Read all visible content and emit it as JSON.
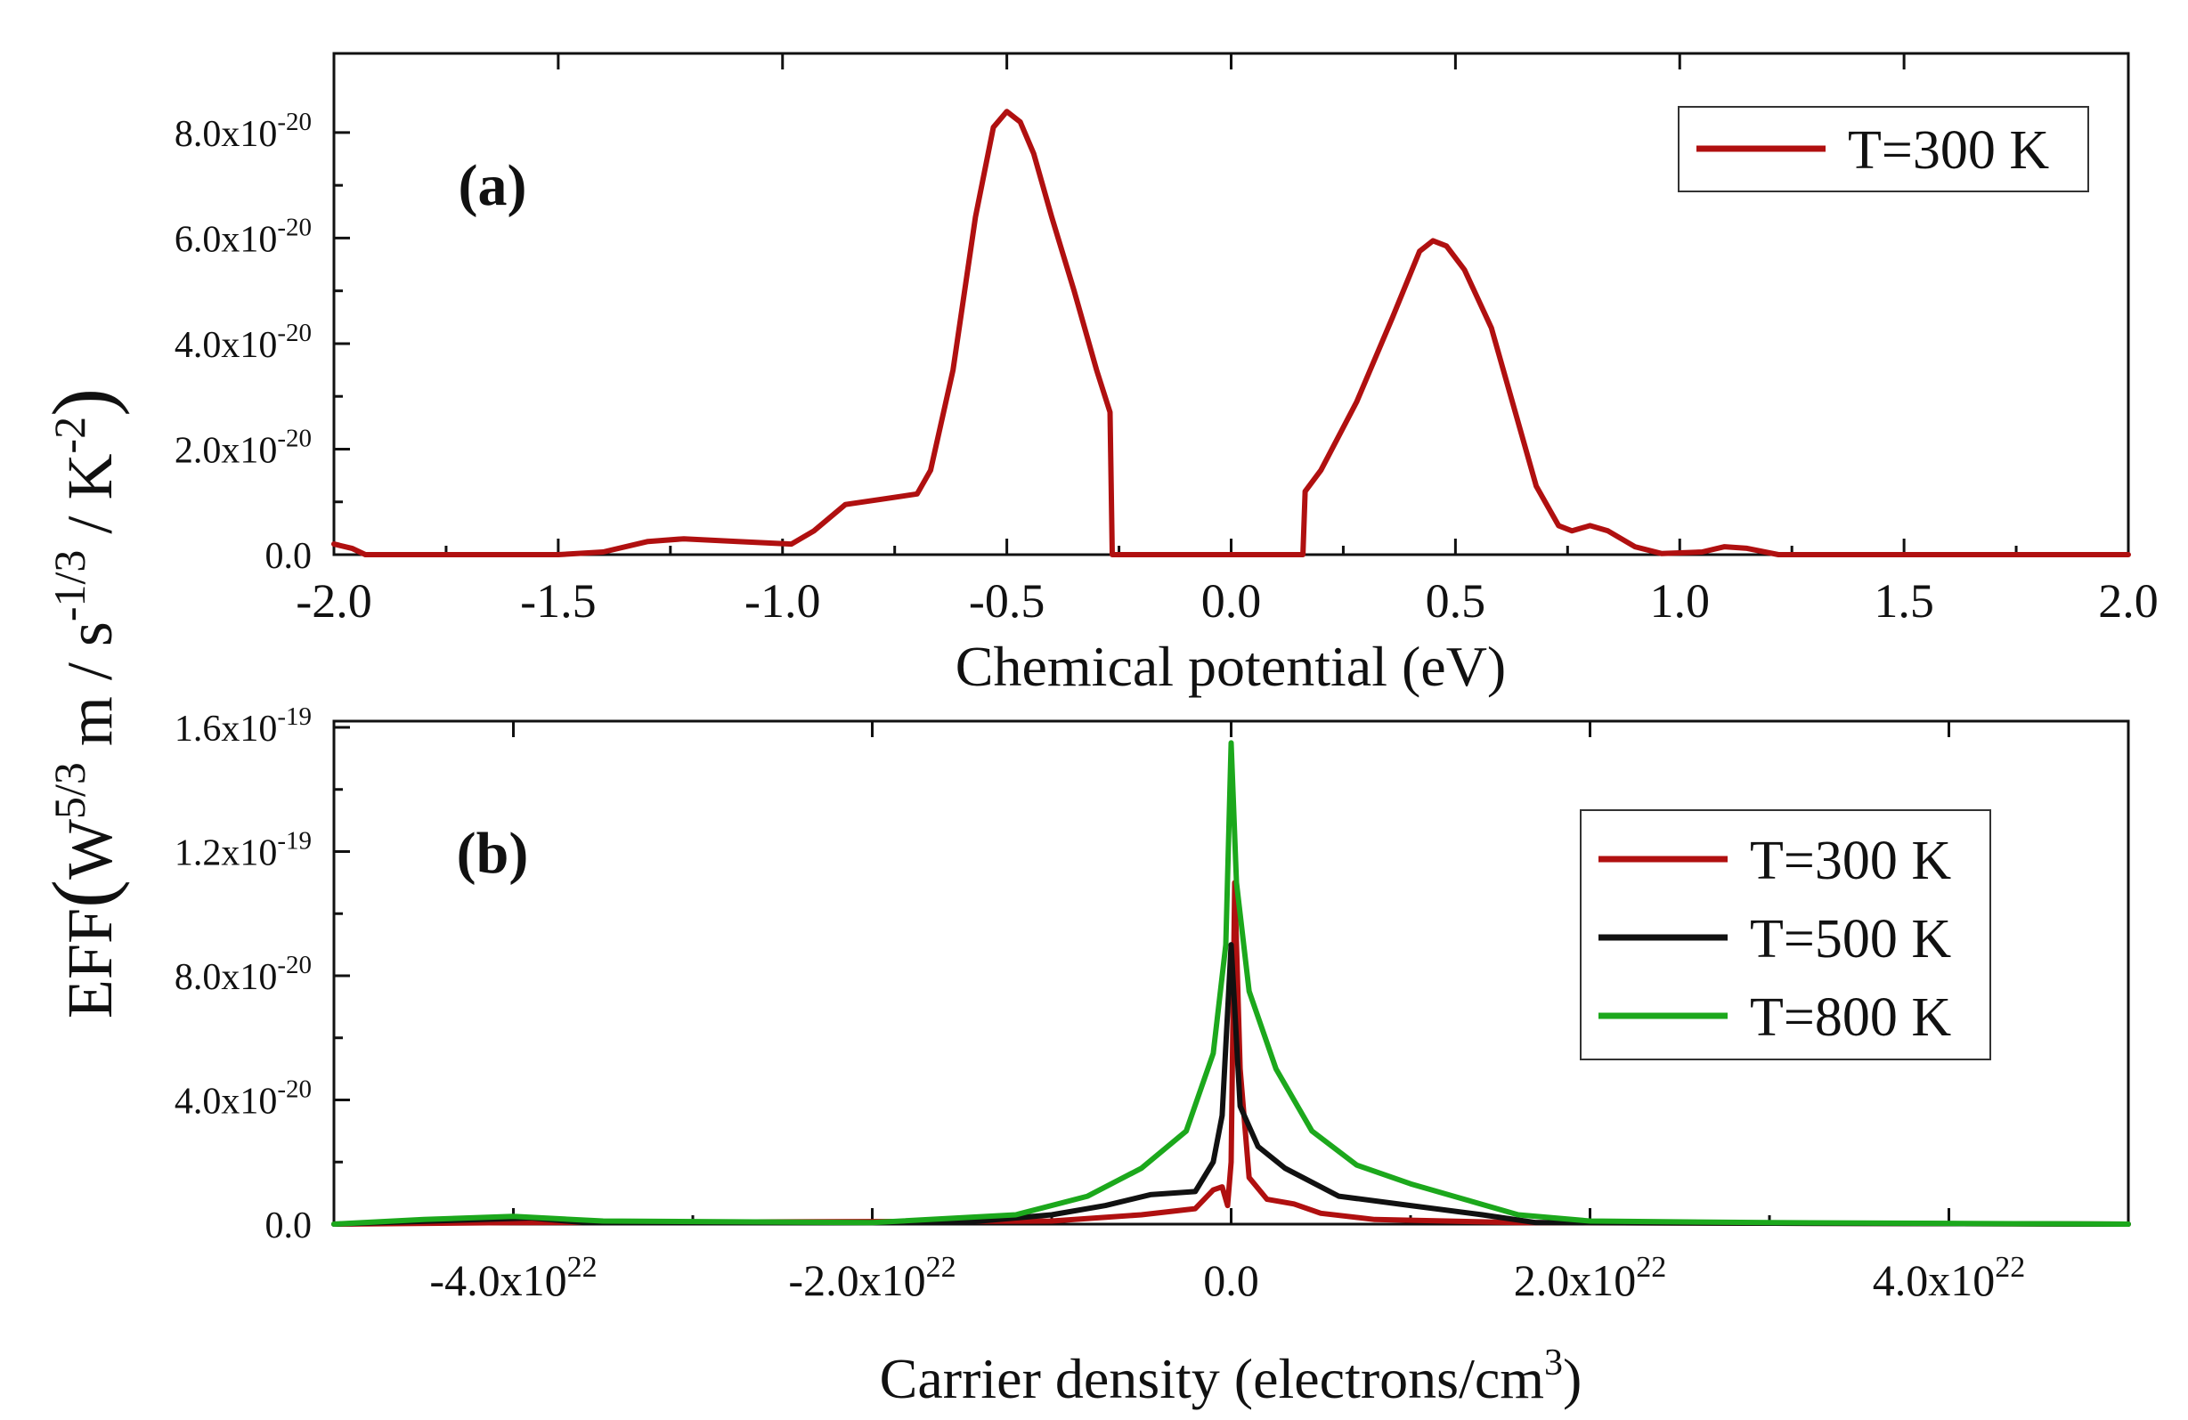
{
  "chart_data": [
    {
      "panel_label": "(a)",
      "type": "line",
      "xlabel": "Chemical potential (eV)",
      "xlim": [
        -2.0,
        2.0
      ],
      "ylim": [
        0,
        9.5e-20
      ],
      "x_ticks": [
        -2.0,
        -1.5,
        -1.0,
        -0.5,
        0.0,
        0.5,
        1.0,
        1.5,
        2.0
      ],
      "x_tick_labels": [
        "-2.0",
        "-1.5",
        "-1.0",
        "-0.5",
        "0.0",
        "0.5",
        "1.0",
        "1.5",
        "2.0"
      ],
      "y_ticks": [
        0,
        2e-20,
        4e-20,
        6e-20,
        8e-20
      ],
      "y_tick_labels": [
        {
          "mant": "0.0",
          "exp": ""
        },
        {
          "mant": "2.0x10",
          "exp": "-20"
        },
        {
          "mant": "4.0x10",
          "exp": "-20"
        },
        {
          "mant": "6.0x10",
          "exp": "-20"
        },
        {
          "mant": "8.0x10",
          "exp": "-20"
        }
      ],
      "legend_position": "top-right",
      "series": [
        {
          "name": "T=300 K",
          "color": "#b01010",
          "points": [
            [
              -2.0,
              2e-21
            ],
            [
              -1.96,
              1.2e-21
            ],
            [
              -1.93,
              0.0
            ],
            [
              -1.5,
              0.0
            ],
            [
              -1.4,
              5e-22
            ],
            [
              -1.3,
              2.5e-21
            ],
            [
              -1.22,
              3e-21
            ],
            [
              -1.1,
              2.5e-21
            ],
            [
              -0.98,
              2e-21
            ],
            [
              -0.93,
              4.5e-21
            ],
            [
              -0.86,
              9.5e-21
            ],
            [
              -0.78,
              1.05e-20
            ],
            [
              -0.7,
              1.15e-20
            ],
            [
              -0.67,
              1.6e-20
            ],
            [
              -0.62,
              3.5e-20
            ],
            [
              -0.57,
              6.4e-20
            ],
            [
              -0.53,
              8.1e-20
            ],
            [
              -0.5,
              8.4e-20
            ],
            [
              -0.47,
              8.2e-20
            ],
            [
              -0.44,
              7.6e-20
            ],
            [
              -0.4,
              6.4e-20
            ],
            [
              -0.35,
              5e-20
            ],
            [
              -0.3,
              3.5e-20
            ],
            [
              -0.27,
              2.7e-20
            ],
            [
              -0.265,
              0.0
            ],
            [
              0.16,
              0.0
            ],
            [
              0.165,
              1.2e-20
            ],
            [
              0.2,
              1.6e-20
            ],
            [
              0.28,
              2.9e-20
            ],
            [
              0.36,
              4.5e-20
            ],
            [
              0.42,
              5.75e-20
            ],
            [
              0.45,
              5.95e-20
            ],
            [
              0.48,
              5.85e-20
            ],
            [
              0.52,
              5.4e-20
            ],
            [
              0.58,
              4.3e-20
            ],
            [
              0.63,
              2.8e-20
            ],
            [
              0.68,
              1.3e-20
            ],
            [
              0.73,
              5.5e-21
            ],
            [
              0.76,
              4.5e-21
            ],
            [
              0.8,
              5.5e-21
            ],
            [
              0.84,
              4.5e-21
            ],
            [
              0.9,
              1.5e-21
            ],
            [
              0.96,
              2e-22
            ],
            [
              1.05,
              5e-22
            ],
            [
              1.1,
              1.5e-21
            ],
            [
              1.15,
              1.2e-21
            ],
            [
              1.22,
              0.0
            ],
            [
              2.0,
              0.0
            ]
          ]
        }
      ]
    },
    {
      "panel_label": "(b)",
      "type": "line",
      "xlabel": "Carrier density (electrons/cm",
      "xlabel_sup": "3",
      "xlabel_end": ")",
      "xlim": [
        -5e+22,
        5e+22
      ],
      "ylim": [
        0,
        1.6e-19
      ],
      "x_ticks": [
        -4e+22,
        -2e+22,
        0.0,
        2e+22,
        4e+22
      ],
      "x_tick_labels": [
        {
          "mant": "-4.0x10",
          "exp": "22"
        },
        {
          "mant": "-2.0x10",
          "exp": "22"
        },
        {
          "mant": "0.0",
          "exp": ""
        },
        {
          "mant": "2.0x10",
          "exp": "22"
        },
        {
          "mant": "4.0x10",
          "exp": "22"
        }
      ],
      "y_ticks": [
        0,
        4e-20,
        8e-20,
        1.2e-19,
        1.6e-19
      ],
      "y_tick_labels": [
        {
          "mant": "0.0",
          "exp": ""
        },
        {
          "mant": "4.0x10",
          "exp": "-20"
        },
        {
          "mant": "8.0x10",
          "exp": "-20"
        },
        {
          "mant": "1.2x10",
          "exp": "-19"
        },
        {
          "mant": "1.6x10",
          "exp": "-19"
        }
      ],
      "legend_position": "top-right",
      "series": [
        {
          "name": "T=300 K",
          "color": "#b01010",
          "points": [
            [
              -5e+22,
              0.0
            ],
            [
              -4e+22,
              5e-22
            ],
            [
              -1e+22,
              1e-21
            ],
            [
              -5e+21,
              3e-21
            ],
            [
              -2e+21,
              5e-21
            ],
            [
              -1e+21,
              1.1e-20
            ],
            [
              -5e+20,
              1.2e-20
            ],
            [
              -2e+20,
              6e-21
            ],
            [
              0.0,
              2e-20
            ],
            [
              2e+20,
              1.1e-19
            ],
            [
              5e+20,
              5e-20
            ],
            [
              1e+21,
              1.5e-20
            ],
            [
              2e+21,
              8e-21
            ],
            [
              3.5e+21,
              6.5e-21
            ],
            [
              5e+21,
              3.5e-21
            ],
            [
              8e+21,
              1.5e-21
            ],
            [
              1.2e+22,
              1e-21
            ],
            [
              1.6e+22,
              5e-22
            ],
            [
              5e+22,
              0.0
            ]
          ]
        },
        {
          "name": "T=500 K",
          "color": "#111111",
          "points": [
            [
              -5e+22,
              0.0
            ],
            [
              -3.9e+22,
              2e-21
            ],
            [
              -3.6e+22,
              5e-22
            ],
            [
              -1.5e+22,
              5e-22
            ],
            [
              -1e+22,
              3e-21
            ],
            [
              -7e+21,
              6e-21
            ],
            [
              -4.5e+21,
              9.5e-21
            ],
            [
              -2e+21,
              1.05e-20
            ],
            [
              -1e+21,
              2e-20
            ],
            [
              -5e+20,
              3.5e-20
            ],
            [
              0.0,
              9e-20
            ],
            [
              5e+20,
              3.8e-20
            ],
            [
              1.5e+21,
              2.5e-20
            ],
            [
              3e+21,
              1.8e-20
            ],
            [
              6e+21,
              9e-21
            ],
            [
              1e+22,
              6e-21
            ],
            [
              1.4e+22,
              3e-21
            ],
            [
              1.7e+22,
              5e-22
            ],
            [
              5e+22,
              0.0
            ]
          ]
        },
        {
          "name": "T=800 K",
          "color": "#1ca81c",
          "points": [
            [
              -5e+22,
              0.0
            ],
            [
              -4.5e+22,
              1.5e-21
            ],
            [
              -4e+22,
              2.5e-21
            ],
            [
              -3.5e+22,
              1e-21
            ],
            [
              -2e+22,
              5e-22
            ],
            [
              -1.2e+22,
              3e-21
            ],
            [
              -8e+21,
              9e-21
            ],
            [
              -5e+21,
              1.8e-20
            ],
            [
              -2.5e+21,
              3e-20
            ],
            [
              -1e+21,
              5.5e-20
            ],
            [
              -3e+20,
              9e-20
            ],
            [
              0.0,
              1.55e-19
            ],
            [
              3e+20,
              1.1e-19
            ],
            [
              1e+21,
              7.5e-20
            ],
            [
              2.5e+21,
              5e-20
            ],
            [
              4.5e+21,
              3e-20
            ],
            [
              7e+21,
              1.9e-20
            ],
            [
              1e+22,
              1.3e-20
            ],
            [
              1.3e+22,
              8e-21
            ],
            [
              1.6e+22,
              3e-21
            ],
            [
              2e+22,
              1e-21
            ],
            [
              3e+22,
              5e-22
            ],
            [
              5e+22,
              0.0
            ]
          ]
        }
      ]
    }
  ],
  "shared_ylabel": {
    "part1": "EFF",
    "paren_open": "(",
    "w": "W",
    "w_exp": "5/3",
    "mid": " m / s",
    "s_exp": "-1/3",
    "slash_k": " / K",
    "k_exp": "-2",
    "paren_close": ")"
  }
}
